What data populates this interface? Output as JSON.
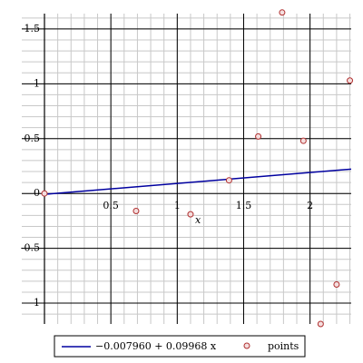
{
  "chart_data": {
    "type": "scatter",
    "x_label": "x",
    "xlim": [
      0,
      2.31
    ],
    "ylim": [
      -1.19,
      1.64
    ],
    "xticks": [
      0.5,
      1,
      1.5,
      2
    ],
    "yticks": [
      -1,
      -0.5,
      0,
      0.5,
      1,
      1.5
    ],
    "grid": true,
    "legend": "bottom",
    "series": [
      {
        "name": "−0.007960 + 0.09968 x",
        "type": "line",
        "color": "#0000a0",
        "x": [
          0,
          2.31
        ],
        "values": [
          -0.00796,
          0.2223
        ]
      },
      {
        "name": "points",
        "type": "scatter",
        "color": "#b03030",
        "x": [
          0,
          0.69,
          1.1,
          1.39,
          1.61,
          1.79,
          1.95,
          2.08,
          2.2,
          2.3
        ],
        "values": [
          0,
          -0.16,
          -0.19,
          0.12,
          0.52,
          1.65,
          0.48,
          -1.19,
          -0.83,
          1.03
        ]
      }
    ]
  }
}
